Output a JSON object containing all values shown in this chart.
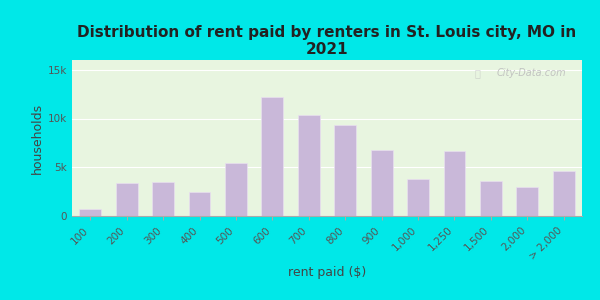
{
  "title": "Distribution of rent paid by renters in St. Louis city, MO in\n2021",
  "xlabel": "rent paid ($)",
  "ylabel": "households",
  "bar_color": "#c9b8d9",
  "bar_edgecolor": "#e8e0f0",
  "background_outer": "#00e8e8",
  "background_inner": "#e8f5e0",
  "categories": [
    "100",
    "200",
    "300",
    "400",
    "500",
    "600",
    "700",
    "800",
    "900",
    "1,000",
    "1,250",
    "1,500",
    "2,000",
    "> 2,000"
  ],
  "values": [
    700,
    3400,
    3500,
    2500,
    5400,
    12200,
    10400,
    9300,
    6800,
    3800,
    6700,
    3600,
    3000,
    4600
  ],
  "ylim": [
    0,
    16000
  ],
  "yticks": [
    0,
    5000,
    10000,
    15000
  ],
  "ytick_labels": [
    "0",
    "5k",
    "10k",
    "15k"
  ],
  "watermark": "City-Data.com",
  "title_fontsize": 11,
  "axis_label_fontsize": 9,
  "tick_fontsize": 7.5
}
